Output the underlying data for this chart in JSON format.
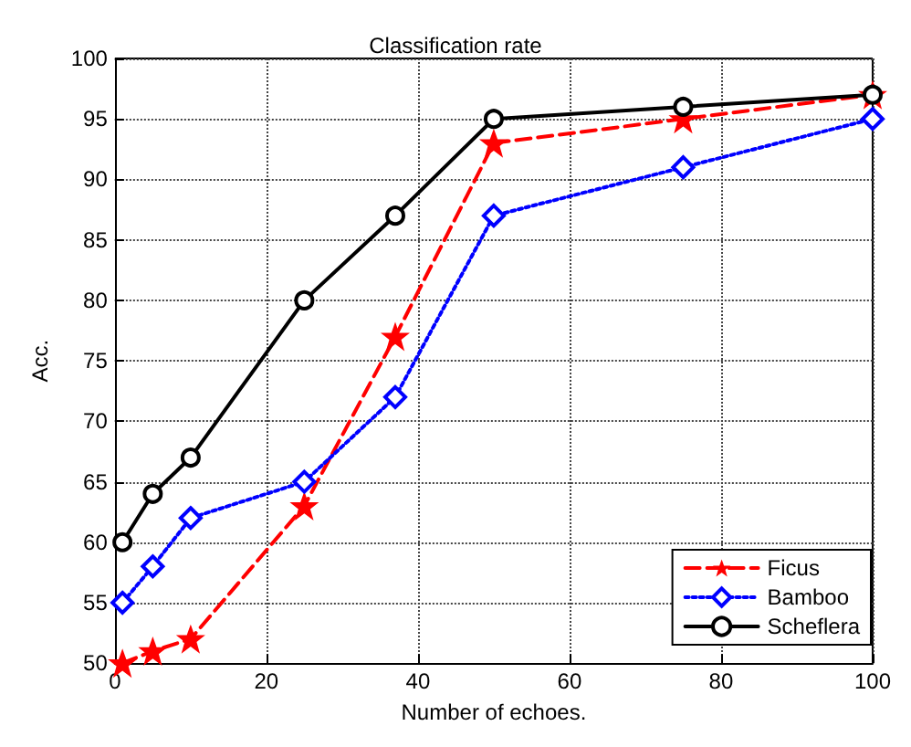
{
  "chart_data": {
    "type": "line",
    "title": "Classification rate",
    "xlabel": "Number of echoes.",
    "ylabel": "Acc.",
    "x": [
      1,
      5,
      10,
      25,
      37,
      50,
      75,
      100
    ],
    "series": [
      {
        "name": "Ficus",
        "color": "#ff0000",
        "marker": "star",
        "line_style": "dashed",
        "values": [
          50,
          51,
          52,
          63,
          77,
          93,
          95,
          97
        ]
      },
      {
        "name": "Bamboo",
        "color": "#0000ff",
        "marker": "diamond",
        "line_style": "dotted",
        "values": [
          55,
          58,
          62,
          65,
          72,
          87,
          91,
          95
        ]
      },
      {
        "name": "Scheflera",
        "color": "#000000",
        "marker": "circle",
        "line_style": "solid",
        "values": [
          60,
          64,
          67,
          80,
          87,
          95,
          96,
          97
        ]
      }
    ],
    "xlim": [
      0,
      100
    ],
    "xticks": [
      0,
      20,
      40,
      60,
      80,
      100
    ],
    "ylim": [
      50,
      100
    ],
    "yticks": [
      50,
      55,
      60,
      65,
      70,
      75,
      80,
      85,
      90,
      95,
      100
    ],
    "grid": true,
    "legend": "bottom right"
  }
}
